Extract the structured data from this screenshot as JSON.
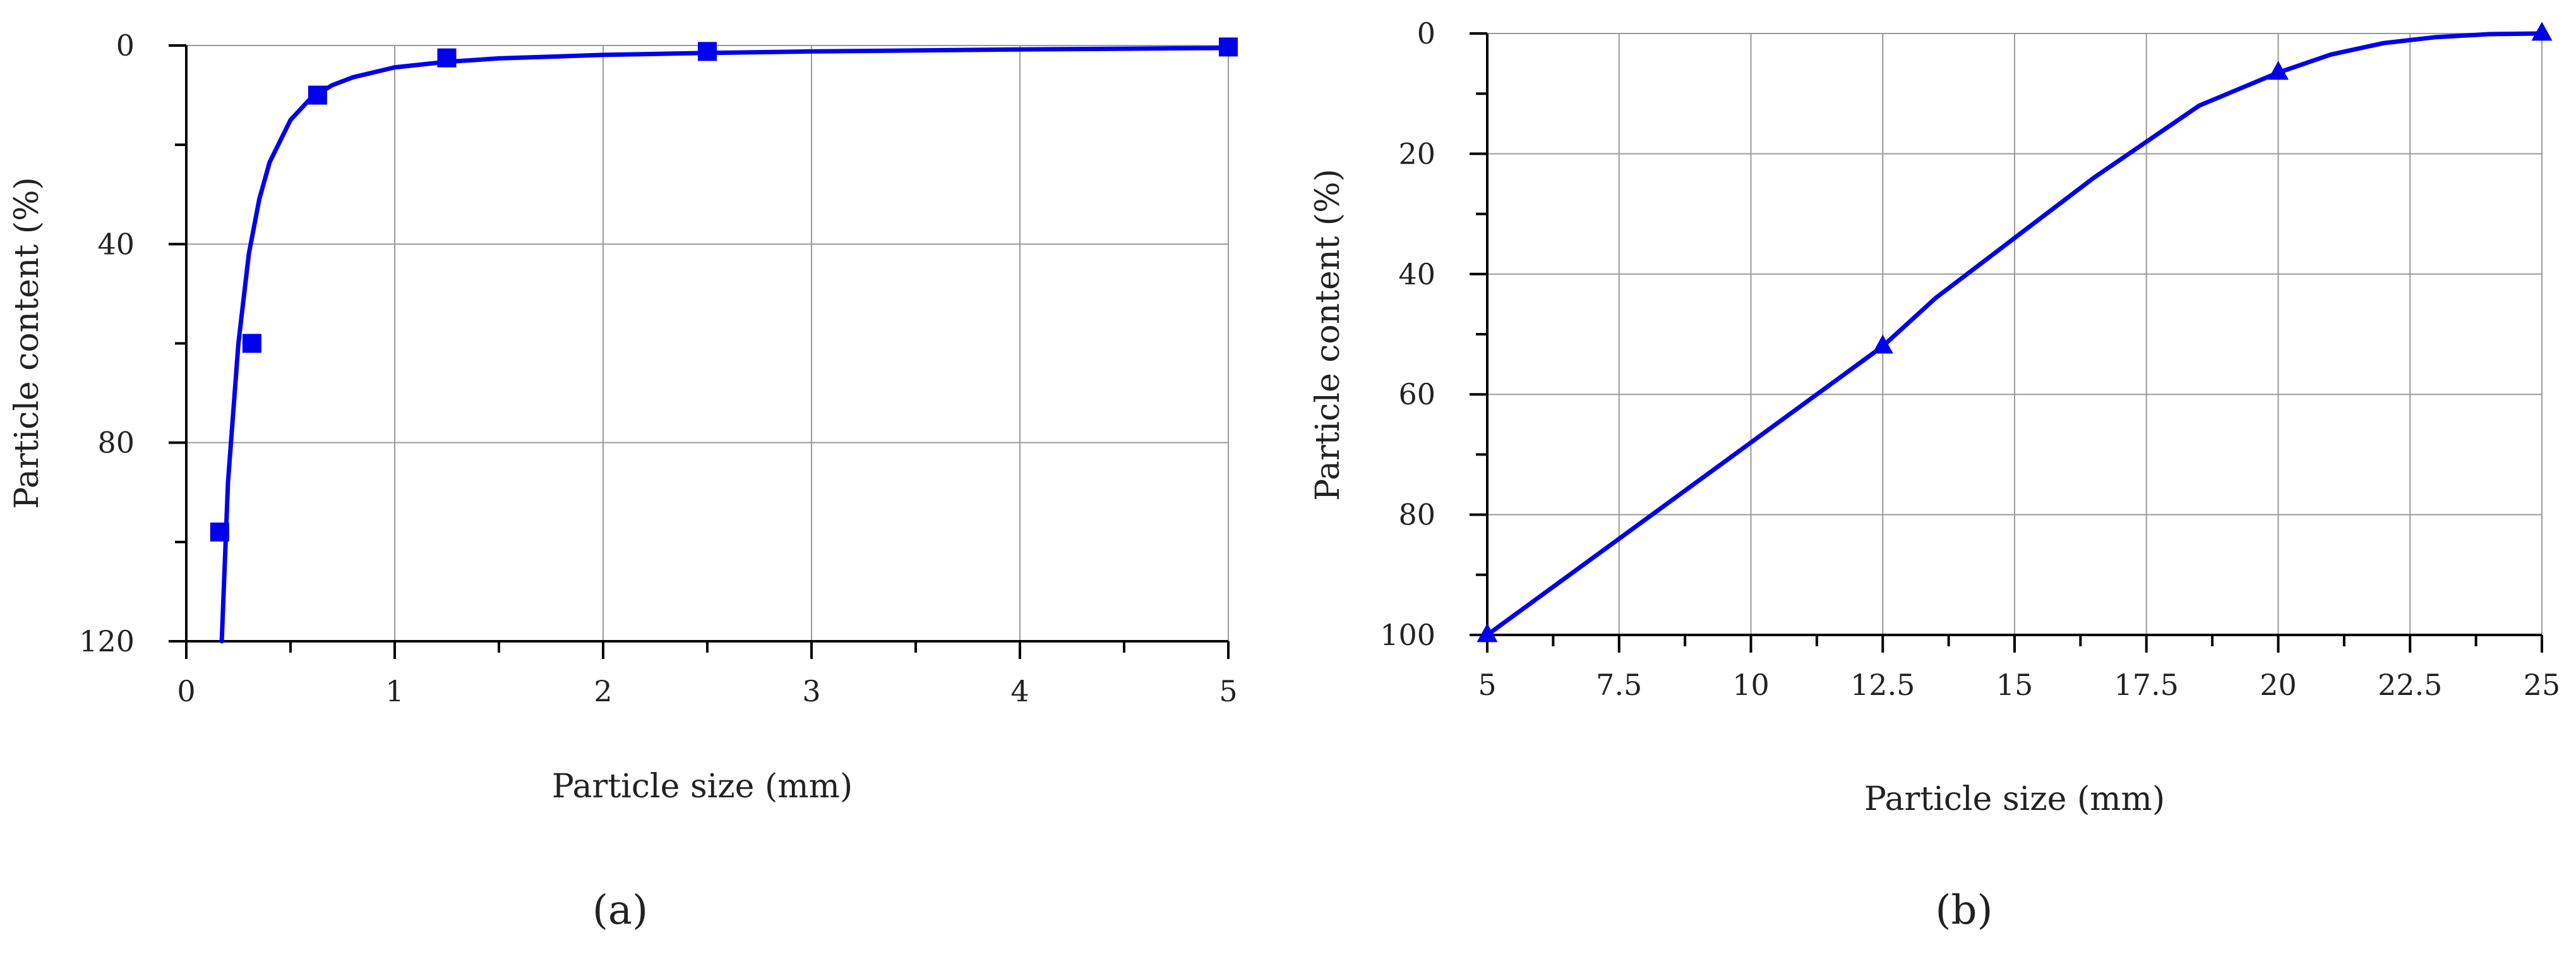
{
  "chart_data": [
    {
      "type": "scatter",
      "panel_label": "(a)",
      "xlabel": "Particle size (mm)",
      "ylabel": "Particle content (%)",
      "xlim": [
        0,
        5
      ],
      "ylim": [
        0,
        120
      ],
      "y_inverted": true,
      "grid": true,
      "x_ticks": [
        "0",
        "1",
        "2",
        "3",
        "4",
        "5"
      ],
      "y_ticks": [
        "0",
        "40",
        "80",
        "120"
      ],
      "color": "#0000ee",
      "series": [
        {
          "marker": "square",
          "x": [
            0.16,
            0.315,
            0.63,
            1.25,
            2.5,
            5
          ],
          "y": [
            98,
            60,
            10,
            2.5,
            1.2,
            0.3
          ]
        }
      ],
      "fit_curve": {
        "x": [
          0.17,
          0.2,
          0.25,
          0.3,
          0.35,
          0.4,
          0.5,
          0.6,
          0.7,
          0.8,
          1.0,
          1.25,
          1.5,
          2.0,
          2.5,
          3.0,
          4.0,
          5.0
        ],
        "y": [
          120,
          88,
          60,
          42,
          31,
          23.5,
          15,
          10.5,
          8,
          6.4,
          4.4,
          3.3,
          2.6,
          1.9,
          1.5,
          1.2,
          0.8,
          0.5
        ]
      }
    },
    {
      "type": "line",
      "panel_label": "(b)",
      "xlabel": "Particle size (mm)",
      "ylabel": "Particle content (%)",
      "xlim": [
        5,
        25
      ],
      "ylim": [
        0,
        100
      ],
      "y_inverted": true,
      "grid": true,
      "x_ticks": [
        "5",
        "7.5",
        "10",
        "12.5",
        "15",
        "17.5",
        "20",
        "22.5",
        "25"
      ],
      "y_ticks": [
        "0",
        "20",
        "40",
        "60",
        "80",
        "100"
      ],
      "color": "#0000ee",
      "series": [
        {
          "marker": "triangle",
          "x": [
            5,
            12.5,
            20,
            25
          ],
          "y": [
            100,
            52,
            6.5,
            0
          ]
        }
      ],
      "smooth_curve": {
        "x": [
          5,
          7.5,
          10,
          12.5,
          13.5,
          15,
          16.5,
          17.5,
          18.5,
          20,
          21,
          22,
          23,
          24,
          25
        ],
        "y": [
          100,
          84,
          68,
          52,
          44,
          34,
          24,
          18,
          12,
          6.5,
          3.5,
          1.6,
          0.6,
          0.1,
          0
        ]
      }
    }
  ]
}
